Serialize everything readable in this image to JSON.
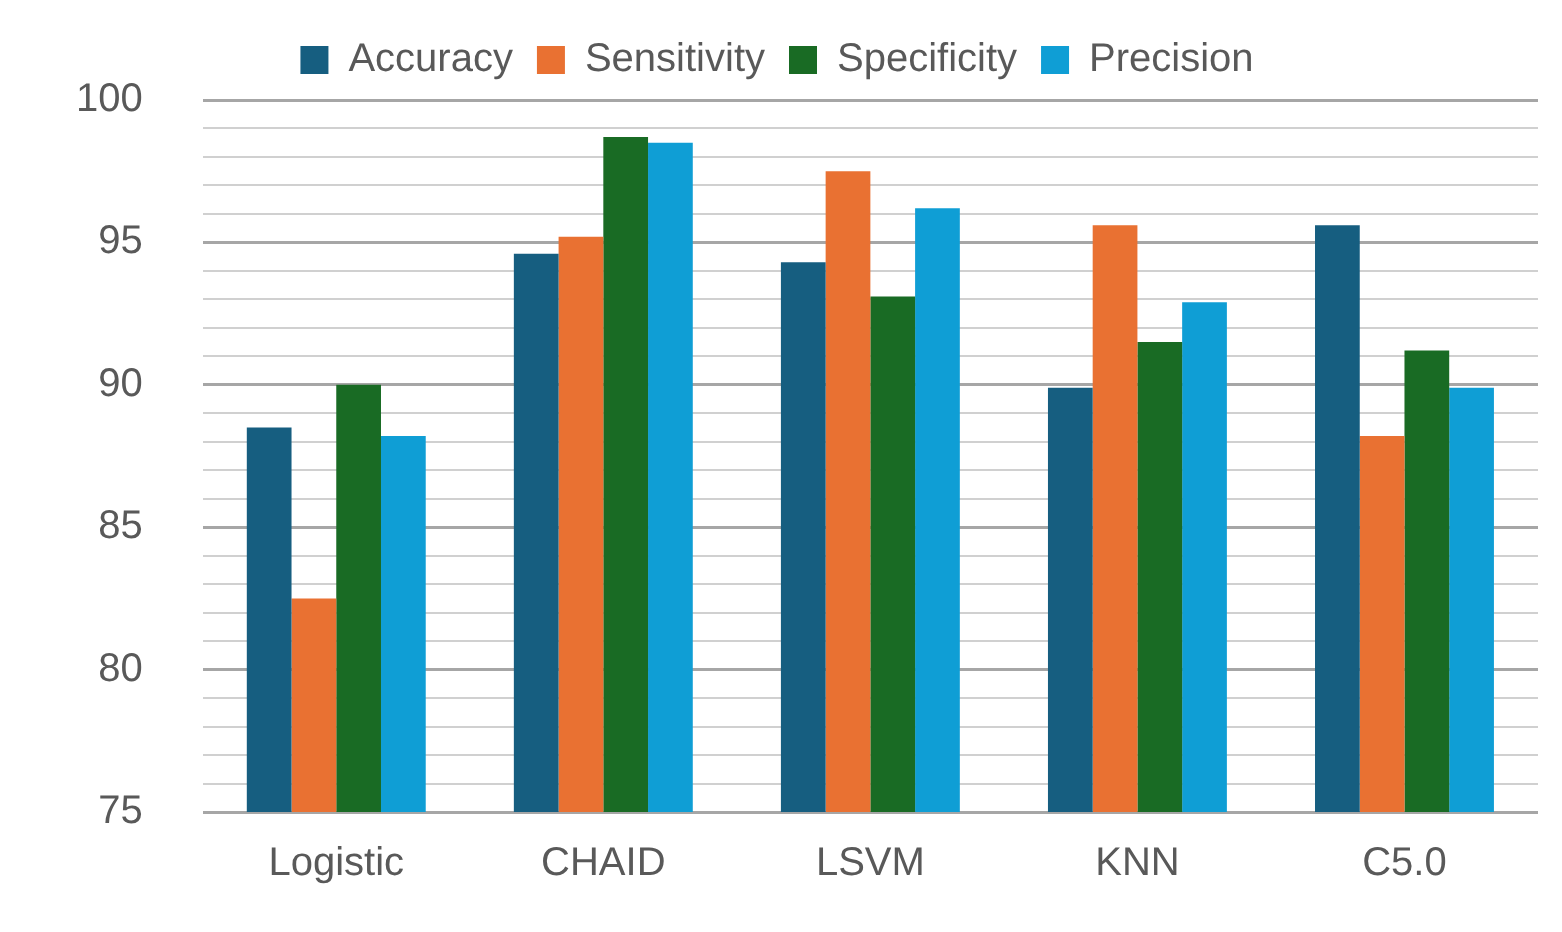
{
  "chart_data": {
    "type": "bar",
    "categories": [
      "Logistic",
      "CHAID",
      "LSVM",
      "KNN",
      "C5.0"
    ],
    "series": [
      {
        "name": "Accuracy",
        "color": "#165e80",
        "values": [
          88.5,
          94.6,
          94.3,
          89.9,
          95.6
        ]
      },
      {
        "name": "Sensitivity",
        "color": "#e97132",
        "values": [
          82.5,
          95.2,
          97.5,
          95.6,
          88.2
        ]
      },
      {
        "name": "Specificity",
        "color": "#196b24",
        "values": [
          90.0,
          98.7,
          93.1,
          91.5,
          91.2
        ]
      },
      {
        "name": "Precision",
        "color": "#0f9ed5",
        "values": [
          88.2,
          98.5,
          96.2,
          92.9,
          89.9
        ]
      }
    ],
    "ylim": [
      75,
      100
    ],
    "yticks": [
      75,
      {
        "value": 76,
        "label": null
      },
      {
        "value": 77,
        "label": null
      },
      {
        "value": 78,
        "label": null
      },
      {
        "value": 79,
        "label": null
      },
      80,
      {
        "value": 81,
        "label": null
      },
      {
        "value": 82,
        "label": null
      },
      {
        "value": 83,
        "label": null
      },
      {
        "value": 84,
        "label": null
      },
      85,
      {
        "value": 86,
        "label": null
      },
      {
        "value": 87,
        "label": null
      },
      {
        "value": 88,
        "label": null
      },
      {
        "value": 89,
        "label": null
      },
      90,
      {
        "value": 91,
        "label": null
      },
      {
        "value": 92,
        "label": null
      },
      {
        "value": 93,
        "label": null
      },
      {
        "value": 94,
        "label": null
      },
      95,
      {
        "value": 96,
        "label": null
      },
      {
        "value": 97,
        "label": null
      },
      {
        "value": 98,
        "label": null
      },
      {
        "value": 99,
        "label": null
      },
      100
    ],
    "grid": "y",
    "legend": "top"
  }
}
